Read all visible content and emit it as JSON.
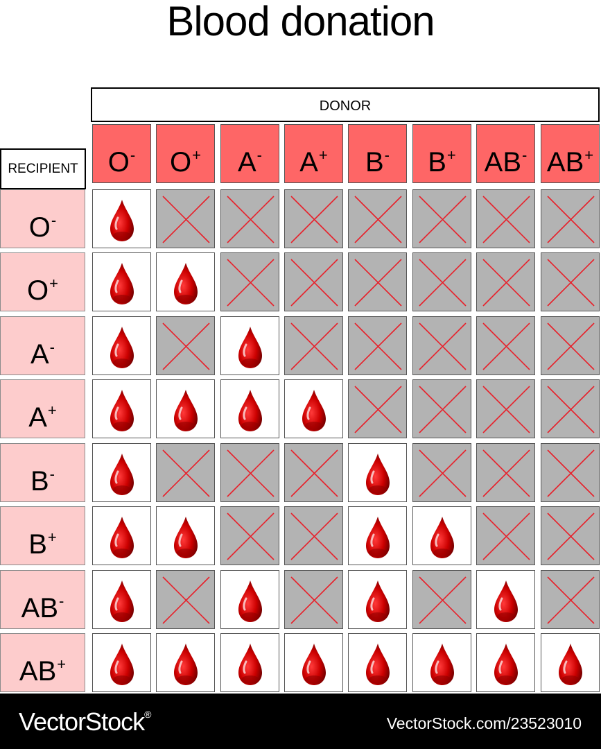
{
  "title": "Blood donation",
  "donor_label": "DONOR",
  "recipient_label": "RECIPIENT",
  "donors": [
    {
      "type": "O",
      "sign": "-"
    },
    {
      "type": "O",
      "sign": "+"
    },
    {
      "type": "A",
      "sign": "-"
    },
    {
      "type": "A",
      "sign": "+"
    },
    {
      "type": "B",
      "sign": "-"
    },
    {
      "type": "B",
      "sign": "+"
    },
    {
      "type": "AB",
      "sign": "-"
    },
    {
      "type": "AB",
      "sign": "+"
    }
  ],
  "recipients": [
    {
      "type": "O",
      "sign": "-"
    },
    {
      "type": "O",
      "sign": "+"
    },
    {
      "type": "A",
      "sign": "-"
    },
    {
      "type": "A",
      "sign": "+"
    },
    {
      "type": "B",
      "sign": "-"
    },
    {
      "type": "B",
      "sign": "+"
    },
    {
      "type": "AB",
      "sign": "-"
    },
    {
      "type": "AB",
      "sign": "+"
    }
  ],
  "compatibility": [
    [
      1,
      0,
      0,
      0,
      0,
      0,
      0,
      0
    ],
    [
      1,
      1,
      0,
      0,
      0,
      0,
      0,
      0
    ],
    [
      1,
      0,
      1,
      0,
      0,
      0,
      0,
      0
    ],
    [
      1,
      1,
      1,
      1,
      0,
      0,
      0,
      0
    ],
    [
      1,
      0,
      0,
      0,
      1,
      0,
      0,
      0
    ],
    [
      1,
      1,
      0,
      0,
      1,
      1,
      0,
      0
    ],
    [
      1,
      0,
      1,
      0,
      1,
      0,
      1,
      0
    ],
    [
      1,
      1,
      1,
      1,
      1,
      1,
      1,
      1
    ]
  ],
  "icons": {
    "compatible": "blood-drop-icon",
    "incompatible": "red-cross-icon"
  },
  "colors": {
    "donor_header": "#fe6666",
    "recipient_header": "#fdcccc",
    "incompatible_cell": "#b3b3b3",
    "cross": "#e8202a",
    "drop": "#cc0000"
  },
  "footer": {
    "brand": "VectorStock",
    "registered": "®",
    "url": "VectorStock.com/23523010"
  }
}
